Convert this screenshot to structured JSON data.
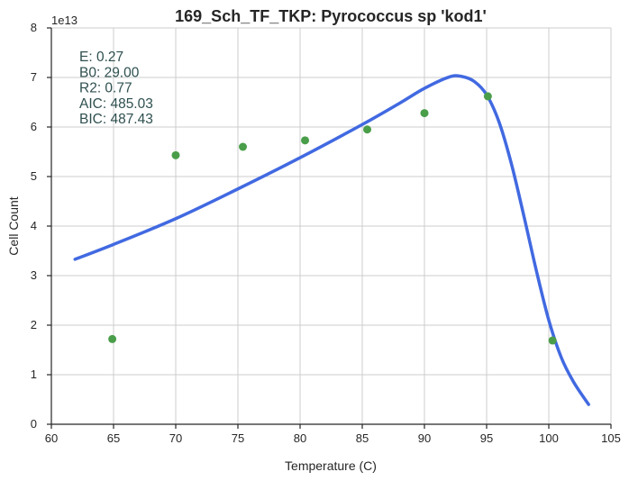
{
  "chart_data": {
    "type": "scatter",
    "title": "169_Sch_TF_TKP: Pyrococcus sp 'kod1'",
    "xlabel": "Temperature (C)",
    "ylabel": "Cell Count",
    "y_offset_label": "1e13",
    "xlim": [
      60,
      105
    ],
    "ylim": [
      0,
      8
    ],
    "xticks": [
      60,
      65,
      70,
      75,
      80,
      85,
      90,
      95,
      100,
      105
    ],
    "yticks": [
      0,
      1,
      2,
      3,
      4,
      5,
      6,
      7,
      8
    ],
    "grid": true,
    "annotation_lines": [
      "E:  0.27",
      "B0:  29.00",
      "R2:  0.77",
      "AIC: 485.03",
      "BIC: 487.43"
    ],
    "colors": {
      "points": "#4a9e4a",
      "fit": "#4169e1"
    },
    "series": [
      {
        "kind": "points",
        "x": [
          64.9,
          70.0,
          75.4,
          80.4,
          85.4,
          90.0,
          95.1,
          100.3
        ],
        "y": [
          1.72,
          5.43,
          5.6,
          5.73,
          5.95,
          6.28,
          6.62,
          1.69
        ]
      },
      {
        "kind": "fit-line",
        "x": [
          61.9,
          65,
          70,
          75,
          80,
          85,
          88,
          90,
          92,
          93,
          94,
          95,
          96,
          97,
          98,
          99,
          100,
          101,
          102,
          103.2
        ],
        "y": [
          3.33,
          3.63,
          4.15,
          4.75,
          5.38,
          6.05,
          6.48,
          6.78,
          7.01,
          7.02,
          6.92,
          6.65,
          6.1,
          5.25,
          4.2,
          3.1,
          2.1,
          1.35,
          0.85,
          0.4
        ]
      }
    ]
  }
}
